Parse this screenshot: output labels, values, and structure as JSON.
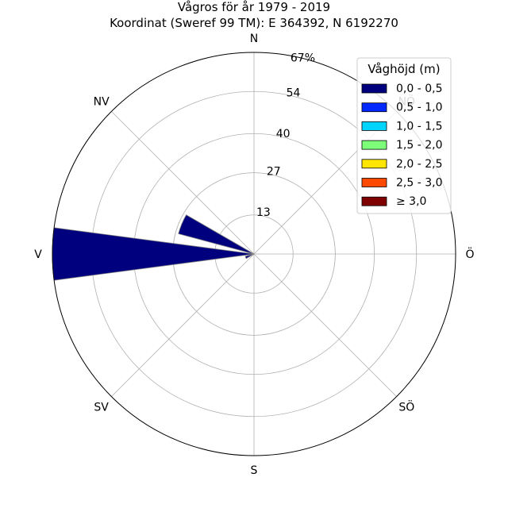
{
  "chart_data": {
    "type": "polar-bar",
    "title": "Vågros för år 1979 - 2019",
    "subtitle": "Koordinat (Sweref 99 TM): E 364392, N 6192270",
    "directions": [
      "N",
      "NV",
      "V",
      "SV",
      "S",
      "SÖ",
      "Ö",
      "NÖ"
    ],
    "radial_ticks": [
      "13",
      "27",
      "40",
      "54",
      "67%"
    ],
    "radial_tick_values": [
      13,
      27,
      40,
      54,
      67
    ],
    "rmax": 67,
    "legend": {
      "title": "Våghöjd (m)",
      "placement": "top-right",
      "entries": [
        {
          "label": "0,0 - 0,5",
          "color": "#00007f"
        },
        {
          "label": "0,5 - 1,0",
          "color": "#0028ff"
        },
        {
          "label": "1,0 - 1,5",
          "color": "#00d4ff"
        },
        {
          "label": "1,5 - 2,0",
          "color": "#7dff7a"
        },
        {
          "label": "2,0 - 2,5",
          "color": "#ffe500"
        },
        {
          "label": "2,5 - 3,0",
          "color": "#ff4800"
        },
        {
          "label": "≥ 3,0",
          "color": "#7f0000"
        }
      ]
    },
    "bars_unit": "percent",
    "bars": [
      {
        "direction_deg": 270,
        "width_deg": 15,
        "class": "0,0 - 0,5",
        "value": 67
      },
      {
        "direction_deg": 292.5,
        "width_deg": 15,
        "class": "0,0 - 0,5",
        "value": 26
      },
      {
        "direction_deg": 247.5,
        "width_deg": 15,
        "class": "0,0 - 0,5",
        "value": 3
      }
    ],
    "grid": true
  }
}
